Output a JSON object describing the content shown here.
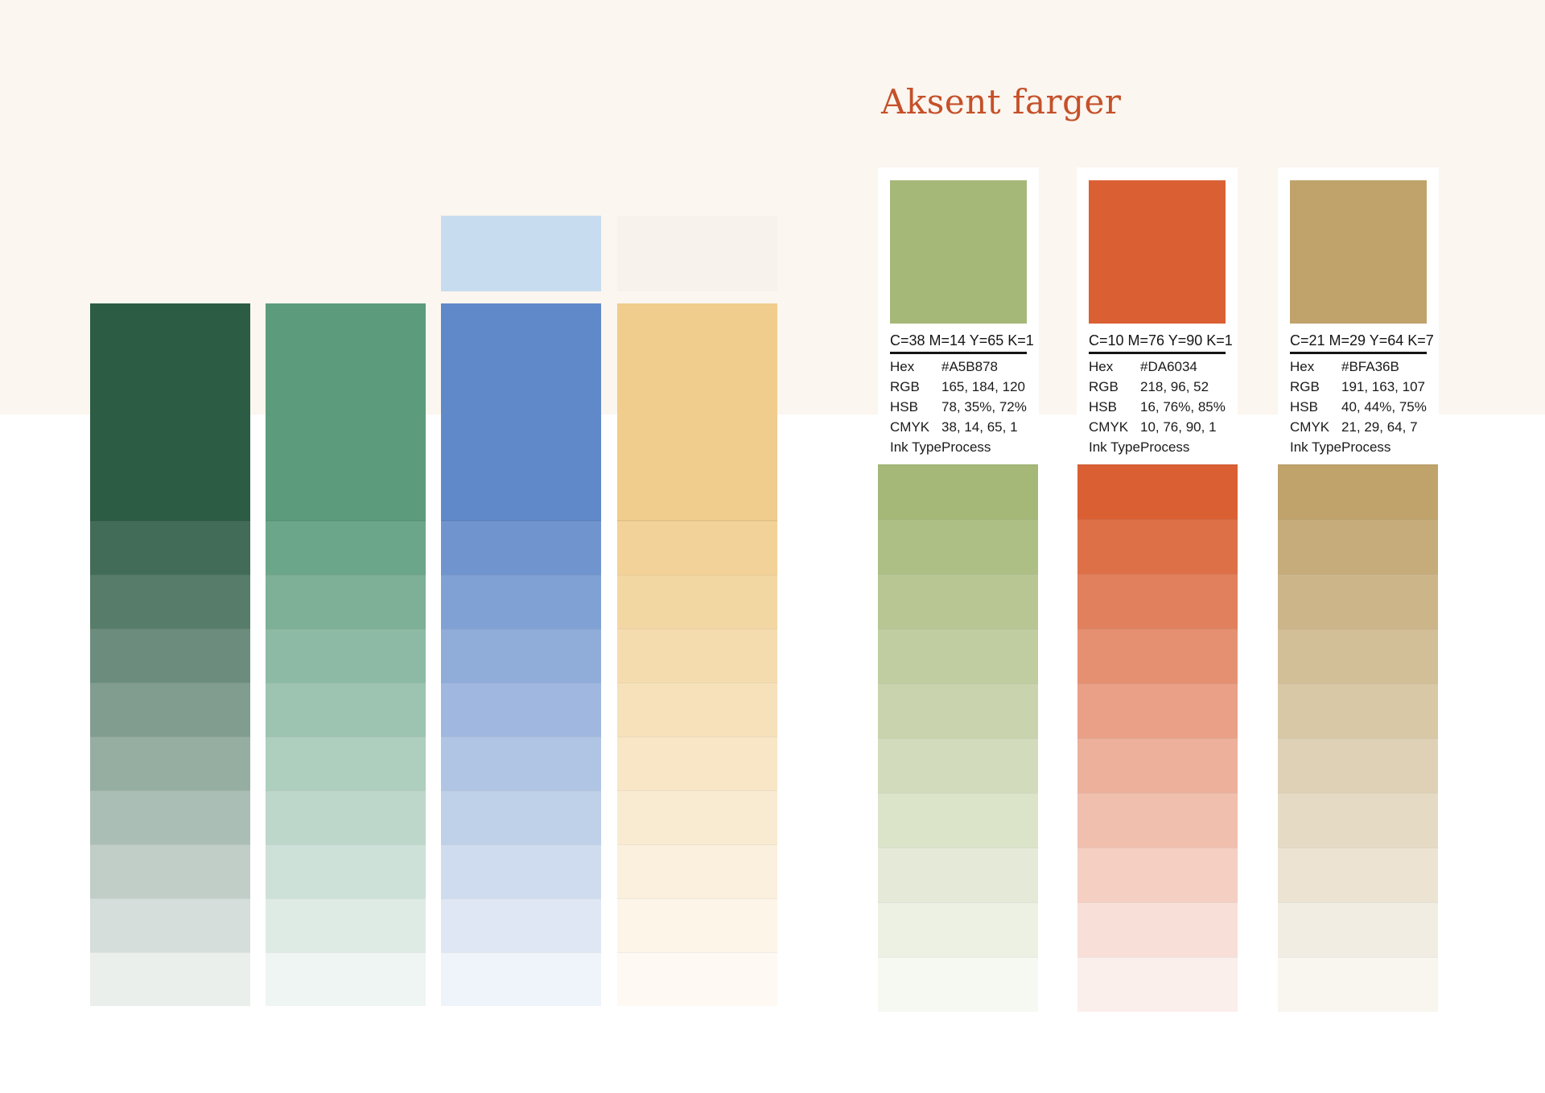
{
  "page": {
    "heading": "Aksent farger"
  },
  "colors": {
    "heading_text": "#C5502A",
    "background_cream": "#FBF6EF",
    "background_white": "#FFFFFF",
    "spec_text": "#1A1A1A"
  },
  "primary_palette": {
    "columns": [
      {
        "name": "dark-green",
        "hex": "#2D5C45",
        "upper_swatch": null,
        "tints": [
          "#426C58",
          "#577D6A",
          "#6C8D7D",
          "#819D8F",
          "#96AEA2",
          "#ABBEB5",
          "#C0CEC7",
          "#D5DEDA",
          "#EAEFEC"
        ]
      },
      {
        "name": "green",
        "hex": "#5C9C7D",
        "upper_swatch": null,
        "tints": [
          "#6CA68A",
          "#7DB097",
          "#8DBAA4",
          "#9DC4B1",
          "#AECEBE",
          "#BED7CB",
          "#CEE1D8",
          "#DEEBE5",
          "#EFF5F2"
        ]
      },
      {
        "name": "blue",
        "hex": "#6089C9",
        "upper_swatch": "#C8DCF0",
        "tints": [
          "#7095CE",
          "#80A1D4",
          "#90ACD9",
          "#A0B8DF",
          "#B0C4E4",
          "#BFD0E9",
          "#CFDCEF",
          "#DFE7F4",
          "#EFF3FA"
        ]
      },
      {
        "name": "yellow",
        "hex": "#F0CD8C",
        "upper_swatch": "#F7F3EC",
        "tints": [
          "#F2D298",
          "#F3D7A3",
          "#F5DCAF",
          "#F6E1BA",
          "#F8E6C6",
          "#F9EBD1",
          "#FBF0DD",
          "#FCF5E8",
          "#FEFAF3"
        ]
      }
    ]
  },
  "accent_cards": [
    {
      "name": "accent-green",
      "hex": "#A5B878",
      "cmyk_title": "C=38 M=14 Y=65 K=1",
      "specs": [
        [
          "Hex",
          "#A5B878"
        ],
        [
          "RGB",
          "165, 184, 120"
        ],
        [
          "HSB",
          "78, 35%, 72%"
        ],
        [
          "CMYK",
          "38, 14, 65, 1"
        ],
        [
          "Ink Type",
          "Process"
        ]
      ],
      "tints": [
        "#A5B878",
        "#AEBF86",
        "#B7C693",
        "#C0CDA1",
        "#C9D4AE",
        "#D2DCBC",
        "#DBE3C9",
        "#E4EAD7",
        "#EDF1E4",
        "#F6F8F2"
      ]
    },
    {
      "name": "accent-orange",
      "hex": "#DA6034",
      "cmyk_title": "C=10 M=76 Y=90 K=1",
      "specs": [
        [
          "Hex",
          "#DA6034"
        ],
        [
          "RGB",
          "218, 96, 52"
        ],
        [
          "HSB",
          "16, 76%, 85%"
        ],
        [
          "CMYK",
          "10, 76, 90, 1"
        ],
        [
          "Ink Type",
          "Process"
        ]
      ],
      "tints": [
        "#DA6034",
        "#DE7048",
        "#E1805D",
        "#E59071",
        "#E9A086",
        "#EDB09A",
        "#F0BFAE",
        "#F4CFC2",
        "#F8DFD7",
        "#FBEFEB"
      ]
    },
    {
      "name": "accent-tan",
      "hex": "#BFA36B",
      "cmyk_title": "C=21 M=29 Y=64 K=7",
      "specs": [
        [
          "Hex",
          "#BFA36B"
        ],
        [
          "RGB",
          "191, 163, 107"
        ],
        [
          "HSB",
          "40, 44%, 75%"
        ],
        [
          "CMYK",
          "21, 29, 64, 7"
        ],
        [
          "Ink Type",
          "Process"
        ]
      ],
      "tints": [
        "#BFA36B",
        "#C5AC7A",
        "#CCB589",
        "#D2BE97",
        "#D9C8A6",
        "#DFD1B5",
        "#E5DAC4",
        "#ECE3D3",
        "#F2EDE2",
        "#F9F6F0"
      ]
    }
  ]
}
